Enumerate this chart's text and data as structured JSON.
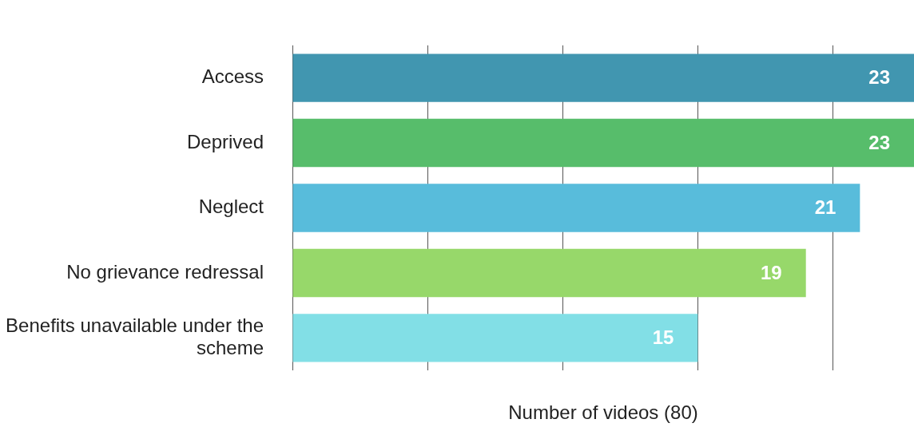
{
  "chart_data": {
    "type": "bar",
    "orientation": "horizontal",
    "xlabel": "Number of videos (80)",
    "categories": [
      "Access",
      "Deprived",
      "Neglect",
      "No grievance redressal",
      "Benefits unavailable under the scheme"
    ],
    "values": [
      23,
      23,
      21,
      19,
      15
    ],
    "colors": [
      "#4196b0",
      "#57bd6b",
      "#58bcdb",
      "#97d86a",
      "#82dfe6"
    ],
    "xlim": [
      0,
      23
    ],
    "xticks": [
      {
        "value": 0,
        "label": null
      },
      {
        "value": 5,
        "label": null
      },
      {
        "value": 10,
        "label": null
      },
      {
        "value": 15,
        "label": null
      },
      {
        "value": 20,
        "label": null
      }
    ],
    "grid": "x",
    "tick_labels": "y",
    "data_labels": true,
    "legend": false
  }
}
